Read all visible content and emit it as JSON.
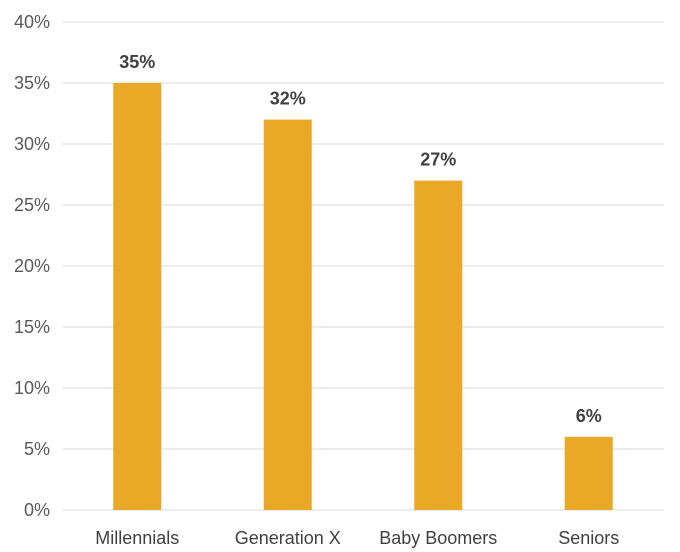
{
  "chart_data": {
    "type": "bar",
    "categories": [
      "Millennials",
      "Generation X",
      "Baby Boomers",
      "Seniors"
    ],
    "values": [
      35,
      32,
      27,
      6
    ],
    "data_labels": [
      "35%",
      "32%",
      "27%",
      "6%"
    ],
    "y_ticks": [
      0,
      5,
      10,
      15,
      20,
      25,
      30,
      35,
      40
    ],
    "y_tick_labels": [
      "0%",
      "5%",
      "10%",
      "15%",
      "20%",
      "25%",
      "30%",
      "35%",
      "40%"
    ],
    "ylim": [
      0,
      40
    ],
    "grid": true,
    "legend": "none",
    "title": "",
    "xlabel": "",
    "ylabel": "",
    "bar_color": "#E9A825"
  }
}
